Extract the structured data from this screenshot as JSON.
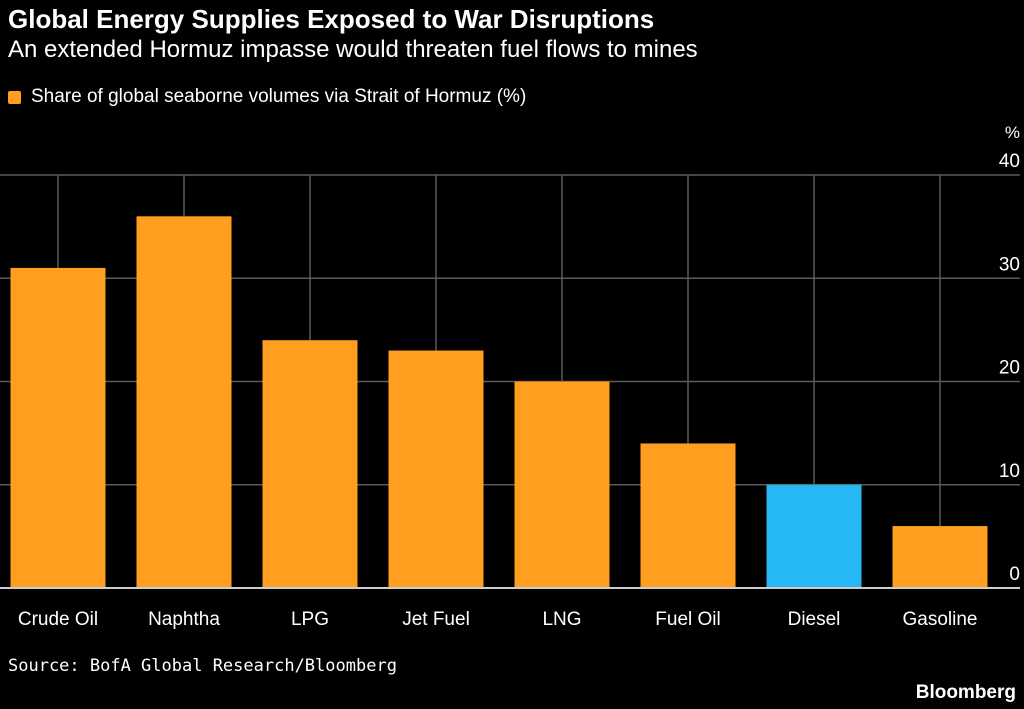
{
  "title": "Global Energy Supplies Exposed to War Disruptions",
  "subtitle": "An extended Hormuz impasse would threaten fuel flows to mines",
  "source": "Source: BofA Global Research/Bloomberg",
  "brand": "Bloomberg",
  "colors": {
    "default": "#ff9e1f",
    "highlight": "#26b8f5",
    "grid": "#5a5a5a",
    "axis": "#cccccc"
  },
  "chart_data": {
    "type": "bar",
    "categories": [
      "Crude Oil",
      "Naphtha",
      "LPG",
      "Jet Fuel",
      "LNG",
      "Fuel Oil",
      "Diesel",
      "Gasoline"
    ],
    "series": [
      {
        "name": "Share of global seaborne volumes via Strait of Hormuz (%)",
        "values": [
          31,
          36,
          24,
          23,
          20,
          14,
          10,
          6
        ]
      }
    ],
    "highlighted": [
      "Diesel"
    ],
    "yunit": "%",
    "ylim": [
      0,
      40
    ],
    "yticks": [
      0,
      10,
      20,
      30,
      40
    ],
    "grid": true,
    "yaxis_position": "right",
    "legend": "top-left"
  }
}
